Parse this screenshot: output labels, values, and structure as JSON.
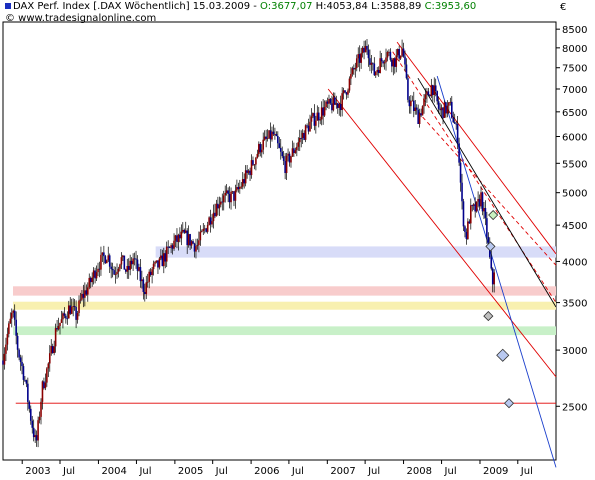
{
  "header": {
    "instrument": "DAX Perf. Index [.DAX  Wöchentlich] 15.03.2009 - ",
    "open": "O:3677,07",
    "high": "H:4053,84",
    "low": "L:3588,89",
    "close": "C:3953,60",
    "copyright": "© www.tradesignalonline.com",
    "currency": "€"
  },
  "colors": {
    "text": "#000000",
    "open": "#008000",
    "close": "#008000",
    "up_candle": "#8b0000",
    "down_candle": "#00008b",
    "channel": "#e00000",
    "trend_black": "#000000",
    "trend_blue": "#1a3fcc",
    "zone_blue": "#d8dcf8",
    "zone_pink": "#f8cccc",
    "zone_yellow": "#f8f0b0",
    "zone_green": "#c8f0c8"
  },
  "chart_data": {
    "type": "candlestick",
    "title": "DAX Perf. Index [.DAX  Wöchentlich] 15.03.2009",
    "ylabel": "€",
    "y_scale": "log",
    "ylim": [
      2100,
      8700
    ],
    "xlim": [
      "2002-10-01",
      "2009-12-31"
    ],
    "y_ticks": [
      2500,
      3000,
      3500,
      4000,
      4500,
      5000,
      5500,
      6000,
      6500,
      7000,
      7500,
      8000,
      8500
    ],
    "x_ticks": [
      {
        "label": "2003",
        "date": "2003-01-01"
      },
      {
        "label": "Jul",
        "date": "2003-07-01"
      },
      {
        "label": "2004",
        "date": "2004-01-01"
      },
      {
        "label": "Jul",
        "date": "2004-07-01"
      },
      {
        "label": "2005",
        "date": "2005-01-01"
      },
      {
        "label": "Jul",
        "date": "2005-07-01"
      },
      {
        "label": "2006",
        "date": "2006-01-01"
      },
      {
        "label": "Jul",
        "date": "2006-07-01"
      },
      {
        "label": "2007",
        "date": "2007-01-01"
      },
      {
        "label": "Jul",
        "date": "2007-07-01"
      },
      {
        "label": "2008",
        "date": "2008-01-01"
      },
      {
        "label": "Jul",
        "date": "2008-07-01"
      },
      {
        "label": "2009",
        "date": "2009-01-01"
      },
      {
        "label": "Jul",
        "date": "2009-07-01"
      }
    ],
    "price_path": [
      [
        "2002-10-01",
        2900
      ],
      [
        "2002-10-25",
        3150
      ],
      [
        "2002-11-20",
        3400
      ],
      [
        "2002-12-15",
        3000
      ],
      [
        "2003-01-15",
        2750
      ],
      [
        "2003-02-10",
        2450
      ],
      [
        "2003-03-12",
        2200
      ],
      [
        "2003-04-10",
        2650
      ],
      [
        "2003-05-15",
        2900
      ],
      [
        "2003-06-20",
        3250
      ],
      [
        "2003-07-15",
        3300
      ],
      [
        "2003-08-20",
        3450
      ],
      [
        "2003-09-20",
        3350
      ],
      [
        "2003-10-15",
        3550
      ],
      [
        "2003-11-20",
        3700
      ],
      [
        "2003-12-31",
        3950
      ],
      [
        "2004-02-15",
        4100
      ],
      [
        "2004-03-20",
        3850
      ],
      [
        "2004-04-20",
        4050
      ],
      [
        "2004-05-20",
        3850
      ],
      [
        "2004-06-20",
        4050
      ],
      [
        "2004-08-10",
        3650
      ],
      [
        "2004-09-20",
        3900
      ],
      [
        "2004-10-20",
        3950
      ],
      [
        "2004-12-31",
        4250
      ],
      [
        "2005-02-15",
        4350
      ],
      [
        "2005-04-20",
        4200
      ],
      [
        "2005-06-20",
        4600
      ],
      [
        "2005-08-10",
        4900
      ],
      [
        "2005-10-20",
        4950
      ],
      [
        "2005-12-31",
        5400
      ],
      [
        "2006-02-15",
        5800
      ],
      [
        "2006-04-20",
        6050
      ],
      [
        "2006-06-15",
        5450
      ],
      [
        "2006-08-20",
        5900
      ],
      [
        "2006-10-20",
        6300
      ],
      [
        "2006-12-31",
        6600
      ],
      [
        "2007-03-10",
        6700
      ],
      [
        "2007-05-20",
        7550
      ],
      [
        "2007-07-15",
        8050
      ],
      [
        "2007-08-15",
        7350
      ],
      [
        "2007-10-15",
        7900
      ],
      [
        "2007-11-20",
        7650
      ],
      [
        "2007-12-31",
        8000
      ],
      [
        "2008-01-25",
        6800
      ],
      [
        "2008-03-15",
        6400
      ],
      [
        "2008-05-20",
        7100
      ],
      [
        "2008-06-25",
        6500
      ],
      [
        "2008-08-15",
        6600
      ],
      [
        "2008-09-20",
        6000
      ],
      [
        "2008-10-10",
        4800
      ],
      [
        "2008-10-28",
        4300
      ],
      [
        "2008-11-20",
        4700
      ],
      [
        "2008-12-20",
        4750
      ],
      [
        "2009-01-10",
        4950
      ],
      [
        "2009-02-10",
        4300
      ],
      [
        "2009-03-05",
        3700
      ],
      [
        "2009-03-15",
        3954
      ]
    ],
    "zones": [
      {
        "color": "blue",
        "low": 4050,
        "high": 4200
      },
      {
        "color": "pink",
        "low": 3580,
        "high": 3690
      },
      {
        "color": "yellow",
        "low": 3420,
        "high": 3510
      },
      {
        "color": "green",
        "low": 3150,
        "high": 3240
      }
    ],
    "lines": [
      {
        "style": "red",
        "from": [
          "2002-12-01",
          2525
        ],
        "to": [
          "2009-12-31",
          2525
        ]
      },
      {
        "style": "red",
        "from": [
          "2007-01-05",
          7000
        ],
        "to": [
          "2009-12-31",
          2750
        ]
      },
      {
        "style": "red",
        "from": [
          "2007-12-01",
          8150
        ],
        "to": [
          "2009-12-31",
          4100
        ]
      },
      {
        "style": "red-dashed",
        "from": [
          "2007-11-10",
          7900
        ],
        "to": [
          "2009-12-31",
          3500
        ]
      },
      {
        "style": "red-dashed",
        "from": [
          "2008-03-10",
          6500
        ],
        "to": [
          "2009-12-31",
          3950
        ]
      },
      {
        "style": "black",
        "from": [
          "2008-03-10",
          7250
        ],
        "to": [
          "2009-12-31",
          3450
        ]
      },
      {
        "style": "blue",
        "from": [
          "2008-06-10",
          7300
        ],
        "to": [
          "2009-12-31",
          2050
        ]
      }
    ],
    "markers": [
      {
        "color": "green",
        "date": "2009-03-05",
        "value": 4650
      },
      {
        "color": "blue",
        "date": "2009-02-20",
        "value": 4200
      },
      {
        "color": "gray",
        "date": "2009-02-10",
        "value": 3350
      },
      {
        "color": "blue",
        "date": "2009-04-20",
        "value": 2950
      },
      {
        "color": "blue",
        "date": "2009-05-20",
        "value": 2525
      }
    ]
  }
}
